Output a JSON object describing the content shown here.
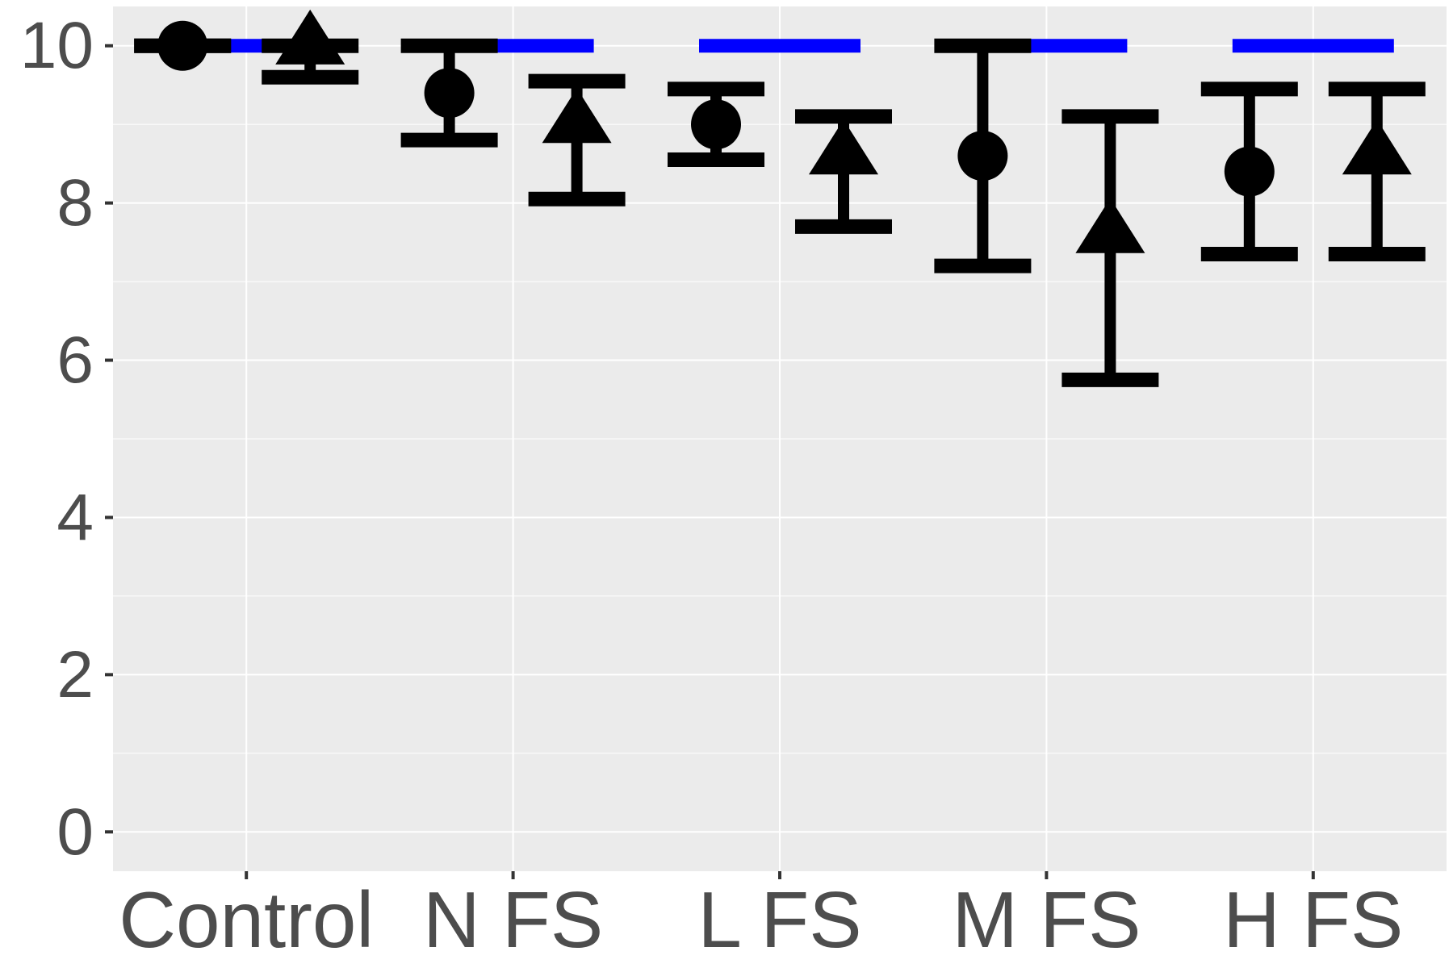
{
  "chart_data": {
    "type": "scatter",
    "title": "",
    "xlabel": "",
    "ylabel": "",
    "ylim": [
      -0.5,
      10.5
    ],
    "yticks": [
      0,
      2,
      4,
      6,
      8,
      10
    ],
    "grid": true,
    "legend": "none",
    "categories": [
      "Control",
      "N FS",
      "L FS",
      "M FS",
      "H FS"
    ],
    "colors": {
      "panel": "#ebebeb",
      "grid": "#ffffff",
      "points": "#000000",
      "reference": "#0000ff",
      "tick_text": "#4d4d4d"
    },
    "series": [
      {
        "marker": "circle",
        "points": [
          {
            "category": "Control",
            "y": 10.0,
            "ymin": 10.0,
            "ymax": 10.0
          },
          {
            "category": "N FS",
            "y": 9.4,
            "ymin": 8.8,
            "ymax": 10.0
          },
          {
            "category": "L FS",
            "y": 9.0,
            "ymin": 8.55,
            "ymax": 9.45
          },
          {
            "category": "M FS",
            "y": 8.6,
            "ymin": 7.2,
            "ymax": 10.0
          },
          {
            "category": "H FS",
            "y": 8.4,
            "ymin": 7.35,
            "ymax": 9.45
          }
        ]
      },
      {
        "marker": "triangle",
        "points": [
          {
            "category": "Control",
            "y": 10.0,
            "ymin": 9.6,
            "ymax": 10.0
          },
          {
            "category": "N FS",
            "y": 9.0,
            "ymin": 8.05,
            "ymax": 9.55
          },
          {
            "category": "L FS",
            "y": 8.6,
            "ymin": 7.7,
            "ymax": 9.1
          },
          {
            "category": "M FS",
            "y": 7.6,
            "ymin": 5.75,
            "ymax": 9.1
          },
          {
            "category": "H FS",
            "y": 8.6,
            "ymin": 7.35,
            "ymax": 9.45
          }
        ]
      }
    ],
    "reference_lines": [
      {
        "category": "Control",
        "y": 10.0
      },
      {
        "category": "N FS",
        "y": 10.0
      },
      {
        "category": "L FS",
        "y": 10.0
      },
      {
        "category": "M FS",
        "y": 10.0
      },
      {
        "category": "H FS",
        "y": 10.0
      }
    ]
  }
}
